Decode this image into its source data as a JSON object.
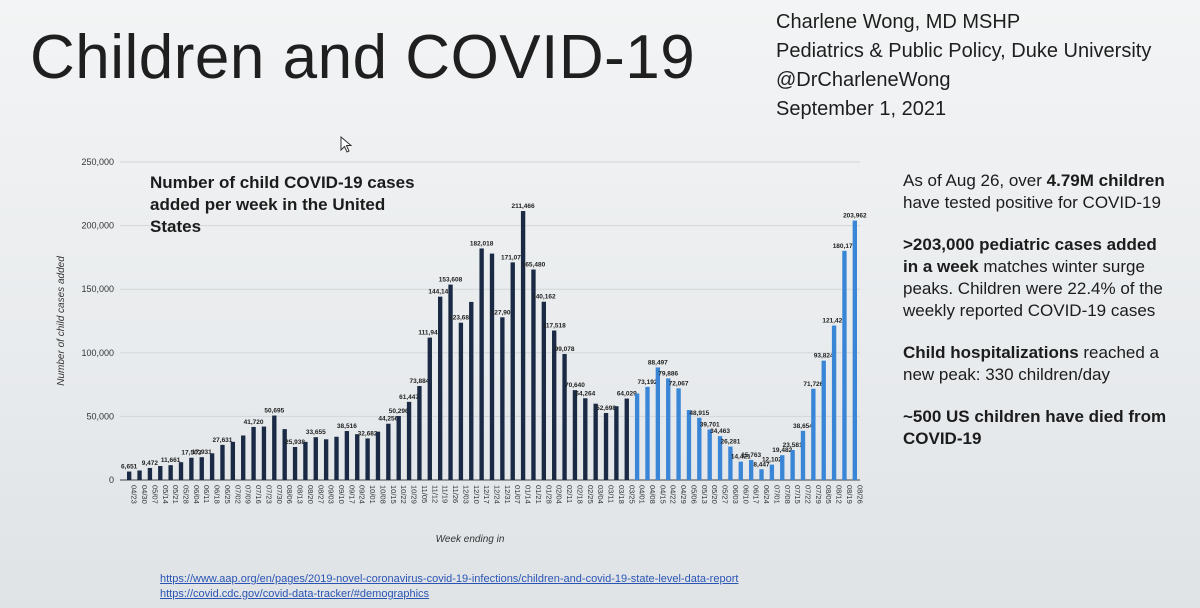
{
  "slide": {
    "title": "Children and COVID-19",
    "author_lines": [
      "Charlene Wong, MD MSHP",
      "Pediatrics & Public Policy, Duke University",
      "@DrCharleneWong",
      "September 1, 2021"
    ],
    "side_notes": [
      {
        "parts": [
          {
            "text": "As of Aug 26, over ",
            "bold": false
          },
          {
            "text": "4.79M children",
            "bold": true
          },
          {
            "text": " have tested positive for COVID-19",
            "bold": false
          }
        ]
      },
      {
        "parts": [
          {
            "text": ">203,000 pediatric cases added in a week",
            "bold": true
          },
          {
            "text": " matches winter surge peaks. Children were 22.4% of the weekly reported COVID-19 cases",
            "bold": false
          }
        ]
      },
      {
        "parts": [
          {
            "text": "Child hospitalizations",
            "bold": true
          },
          {
            "text": " reached a new peak: 330 children/day",
            "bold": false
          }
        ]
      },
      {
        "parts": [
          {
            "text": "~500 US children have died from COVID-19",
            "bold": true
          }
        ]
      }
    ],
    "sources": [
      "https://www.aap.org/en/pages/2019-novel-coronavirus-covid-19-infections/children-and-covid-19-state-level-data-report",
      "https://covid.cdc.gov/covid-data-tracker/#demographics"
    ]
  },
  "chart_data": {
    "type": "bar",
    "title": "Number of child COVID-19 cases added per week in the United States",
    "xlabel": "Week ending in",
    "ylabel": "Number of child cases added",
    "ylim": [
      0,
      250000
    ],
    "yticks": [
      "0",
      "50,000",
      "100,000",
      "150,000",
      "200,000",
      "250,000"
    ],
    "grid": true,
    "colors": {
      "dark": "#1a2a44",
      "light": "#3a86d6"
    },
    "categories": [
      "04/23",
      "04/30",
      "05/07",
      "05/14",
      "05/21",
      "05/28",
      "06/04",
      "06/11",
      "06/18",
      "06/25",
      "07/02",
      "07/09",
      "07/16",
      "07/23",
      "07/30",
      "08/06",
      "08/13",
      "08/20",
      "08/27",
      "09/03",
      "09/10",
      "09/17",
      "09/24",
      "10/01",
      "10/08",
      "10/15",
      "10/22",
      "10/29",
      "11/05",
      "11/12",
      "11/19",
      "11/26",
      "12/03",
      "12/10",
      "12/17",
      "12/24",
      "12/31",
      "01/07",
      "01/14",
      "01/21",
      "01/28",
      "02/04",
      "02/11",
      "02/18",
      "02/25",
      "03/04",
      "03/11",
      "03/18",
      "03/25",
      "04/01",
      "04/08",
      "04/15",
      "04/22",
      "04/29",
      "05/06",
      "05/13",
      "05/20",
      "05/27",
      "06/03",
      "06/10",
      "06/17",
      "06/24",
      "07/01",
      "07/08",
      "07/15",
      "07/22",
      "07/29",
      "08/05",
      "08/12",
      "08/19",
      "08/26"
    ],
    "x_tick_labels": [
      "04/23",
      "04/30",
      "05/07",
      "05/14",
      "05/21",
      "05/28",
      "06/04",
      "06/11",
      "06/18",
      "06/25",
      "07/02",
      "07/09",
      "07/16",
      "07/23",
      "07/30",
      "08/06",
      "08/13",
      "08/20",
      "08/27",
      "09/03",
      "09/10",
      "09/17",
      "09/24",
      "10/01",
      "10/08",
      "10/15",
      "10/22",
      "10/29",
      "11/05",
      "11/12",
      "11/19",
      "11/26",
      "12/03",
      "12/10",
      "12/17",
      "12/24",
      "12/31",
      "01/07",
      "01/14",
      "01/21",
      "01/28",
      "02/04",
      "02/11",
      "02/18",
      "02/25",
      "03/04",
      "03/11",
      "03/18",
      "03/25",
      "04/01",
      "04/08",
      "04/15",
      "04/22",
      "04/29",
      "05/06",
      "05/13",
      "05/20",
      "05/27",
      "06/03",
      "06/10",
      "06/17",
      "06/24",
      "07/01",
      "07/08",
      "07/15",
      "07/22",
      "07/29",
      "08/05",
      "08/12",
      "08/19",
      "08/26"
    ],
    "values": [
      6651,
      7500,
      9472,
      11000,
      11661,
      14000,
      17503,
      17931,
      21000,
      27631,
      30000,
      35000,
      41720,
      42000,
      50695,
      40000,
      25938,
      30000,
      33655,
      32000,
      34000,
      38516,
      36000,
      32682,
      38000,
      44256,
      50296,
      61447,
      73884,
      111945,
      144145,
      153608,
      123688,
      140000,
      182018,
      178000,
      127905,
      171079,
      211466,
      165480,
      140162,
      117518,
      99078,
      70640,
      64264,
      60000,
      52698,
      58000,
      64029,
      68000,
      73192,
      88497,
      79886,
      72067,
      55000,
      48915,
      39701,
      34463,
      26281,
      14421,
      15763,
      8447,
      12102,
      19482,
      23581,
      38654,
      71726,
      93824,
      121427,
      180175,
      203962
    ],
    "data_labels": {
      "0": "6,651",
      "2": "9,472",
      "4": "11,661",
      "6": "17,503",
      "7": "17,931",
      "9": "27,631",
      "12": "41,720",
      "14": "50,695",
      "16": "25,938",
      "18": "33,655",
      "21": "38,516",
      "23": "32,682",
      "25": "44,256",
      "26": "50,296",
      "27": "61,447",
      "28": "73,884",
      "29": "111,945",
      "30": "144,145",
      "31": "153,608",
      "32": "123,688",
      "34": "182,018",
      "36": "127,905",
      "37": "171,079",
      "38": "211,466",
      "39": "165,480",
      "40": "140,162",
      "41": "117,518",
      "42": "99,078",
      "43": "70,640",
      "44": "64,264",
      "46": "52,698",
      "48": "64,029",
      "50": "73,192",
      "51": "88,497",
      "52": "79,886",
      "53": "72,067",
      "55": "48,915",
      "56": "39,701",
      "57": "34,463",
      "58": "26,281",
      "59": "14,421",
      "60": "15,763",
      "61": "8,447",
      "62": "12,102",
      "63": "19,482",
      "64": "23,581",
      "65": "38,654",
      "66": "71,726",
      "67": "93,824",
      "68": "121,427",
      "69": "180,175",
      "70": "203,962"
    },
    "light_from_category": "04/01"
  }
}
